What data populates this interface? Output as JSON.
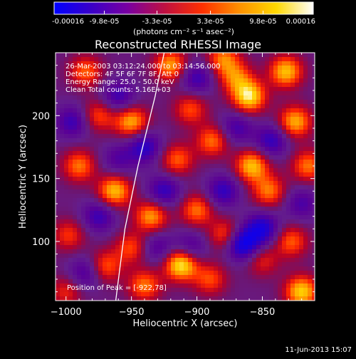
{
  "colorbar": {
    "tick_labels": [
      "-0.00016",
      "-9.8e-05",
      "-3.3e-05",
      "3.3e-05",
      "9.8e-05",
      "0.00016"
    ],
    "tick_values": [
      -0.00016,
      -9.8e-05,
      -3.3e-05,
      3.3e-05,
      9.8e-05,
      0.00016
    ],
    "range": [
      -0.00016,
      0.00016
    ],
    "units_label": "(photons cm⁻² s⁻¹ asec⁻²)",
    "colors": [
      "#0000ff",
      "#3a00c8",
      "#7a00a0",
      "#c01040",
      "#ff3000",
      "#ff9000",
      "#ffd800",
      "#ffffff"
    ]
  },
  "chart_data": {
    "type": "heatmap",
    "title": "Reconstructed RHESSI Image",
    "xlabel": "Heliocentric X (arcsec)",
    "ylabel": "Heliocentric Y (arcsec)",
    "xlim": [
      -1008,
      -810
    ],
    "ylim": [
      53,
      250
    ],
    "xticks": [
      -1000,
      -950,
      -900,
      -850
    ],
    "xtick_labels": [
      "−1000",
      "−950",
      "−900",
      "−850"
    ],
    "yticks": [
      100,
      150,
      200
    ],
    "ytick_labels": [
      "100",
      "150",
      "200"
    ],
    "annotations": [
      "26-Mar-2003 03:12:24.000 to 03:14:56.000",
      "Detectors: 4F 5F 6F 7F 8F, Att 0",
      "Energy Range: 25.0 - 50.0 keV",
      "Clean     Total counts: 5.16E+03"
    ],
    "peak_label": "Position of Peak = [-922,78]",
    "peak_position": [
      -922,
      78
    ],
    "limb_curve": [
      [
        -962,
        53
      ],
      [
        -955,
        110
      ],
      [
        -945,
        160
      ],
      [
        -932,
        215
      ],
      [
        -925,
        250
      ]
    ],
    "blobs": [
      {
        "x": -912,
        "y": 82,
        "v": 1.0
      },
      {
        "x": -963,
        "y": 140,
        "v": 0.8
      },
      {
        "x": -950,
        "y": 195,
        "v": 0.75
      },
      {
        "x": -935,
        "y": 120,
        "v": 0.7
      },
      {
        "x": -920,
        "y": 240,
        "v": 0.7
      },
      {
        "x": -880,
        "y": 245,
        "v": 0.6
      },
      {
        "x": -860,
        "y": 215,
        "v": 0.9
      },
      {
        "x": -832,
        "y": 235,
        "v": 0.8
      },
      {
        "x": -825,
        "y": 195,
        "v": 0.75
      },
      {
        "x": -858,
        "y": 160,
        "v": 0.8
      },
      {
        "x": -845,
        "y": 140,
        "v": 0.6
      },
      {
        "x": -888,
        "y": 180,
        "v": 0.6
      },
      {
        "x": -905,
        "y": 205,
        "v": 0.5
      },
      {
        "x": -985,
        "y": 235,
        "v": 0.55
      },
      {
        "x": -990,
        "y": 160,
        "v": 0.6
      },
      {
        "x": -975,
        "y": 200,
        "v": 0.5
      },
      {
        "x": -998,
        "y": 105,
        "v": 0.45
      },
      {
        "x": -970,
        "y": 80,
        "v": 0.55
      },
      {
        "x": -940,
        "y": 65,
        "v": 0.6
      },
      {
        "x": -890,
        "y": 70,
        "v": 0.5
      },
      {
        "x": -820,
        "y": 60,
        "v": 0.85
      },
      {
        "x": -828,
        "y": 100,
        "v": 0.55
      },
      {
        "x": -900,
        "y": 125,
        "v": 0.6
      },
      {
        "x": -878,
        "y": 105,
        "v": 0.55
      },
      {
        "x": -950,
        "y": 95,
        "v": 0.5
      },
      {
        "x": -915,
        "y": 165,
        "v": 0.55
      },
      {
        "x": -850,
        "y": 85,
        "v": 0.4
      },
      {
        "x": -870,
        "y": 230,
        "v": 0.55
      },
      {
        "x": -815,
        "y": 160,
        "v": 0.6
      },
      {
        "x": -1000,
        "y": 60,
        "v": 0.4
      },
      {
        "x": -975,
        "y": 120,
        "v": -0.5
      },
      {
        "x": -940,
        "y": 175,
        "v": -0.6
      },
      {
        "x": -925,
        "y": 140,
        "v": -0.55
      },
      {
        "x": -865,
        "y": 98,
        "v": -0.9
      },
      {
        "x": -850,
        "y": 110,
        "v": -0.7
      },
      {
        "x": -880,
        "y": 140,
        "v": -0.55
      },
      {
        "x": -900,
        "y": 230,
        "v": -0.5
      },
      {
        "x": -843,
        "y": 180,
        "v": -0.55
      },
      {
        "x": -995,
        "y": 195,
        "v": -0.5
      },
      {
        "x": -960,
        "y": 215,
        "v": -0.5
      },
      {
        "x": -905,
        "y": 95,
        "v": -0.45
      },
      {
        "x": -985,
        "y": 75,
        "v": -0.45
      },
      {
        "x": -930,
        "y": 95,
        "v": -0.4
      },
      {
        "x": -820,
        "y": 130,
        "v": -0.4
      },
      {
        "x": -870,
        "y": 190,
        "v": -0.45
      },
      {
        "x": -960,
        "y": 165,
        "v": -0.35
      }
    ]
  },
  "footer": {
    "timestamp": "11-Jun-2013 15:07"
  }
}
